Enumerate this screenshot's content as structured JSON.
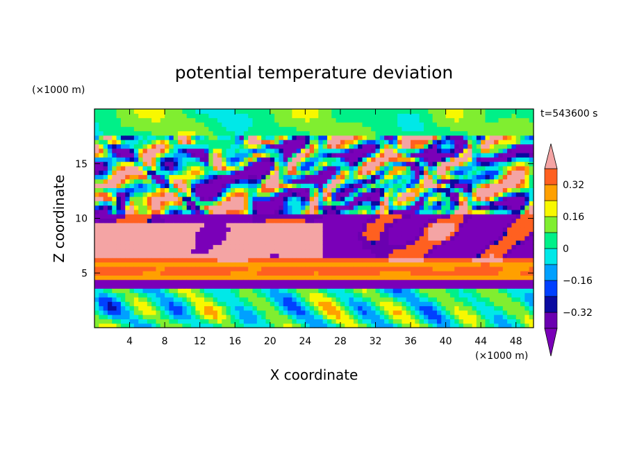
{
  "chart_data": {
    "type": "heatmap",
    "title": "potential temperature deviation",
    "xlabel": "X coordinate",
    "ylabel": "Z coordinate",
    "x_unit": "(×1000 m)",
    "y_unit": "(×1000 m)",
    "time_label": "t=543600 s",
    "xlim": [
      0,
      50
    ],
    "ylim": [
      0,
      20
    ],
    "x_ticks": [
      4,
      8,
      12,
      16,
      20,
      24,
      28,
      32,
      36,
      40,
      44,
      48
    ],
    "y_ticks": [
      5,
      10,
      15
    ],
    "colorbar": {
      "levels": [
        -0.4,
        -0.32,
        -0.24,
        -0.16,
        -0.08,
        0,
        0.08,
        0.16,
        0.24,
        0.32,
        0.4
      ],
      "labels": [
        {
          "value": 0.32,
          "text": "0.32"
        },
        {
          "value": 0.16,
          "text": "0.16"
        },
        {
          "value": 0,
          "text": "0"
        },
        {
          "value": -0.16,
          "text": "−0.16"
        },
        {
          "value": -0.32,
          "text": "−0.32"
        }
      ],
      "colors": [
        "#6a00b0",
        "#0a0aa0",
        "#0040ff",
        "#00a0ff",
        "#00e8e8",
        "#00f088",
        "#80ee30",
        "#f8f800",
        "#ffa000",
        "#ff6020",
        "#ff2020"
      ],
      "under_color": "#7a00b8",
      "over_color": "#f4a4a4"
    },
    "field_features": [
      {
        "z_range": [
          0,
          3.8
        ],
        "pattern": "convective swirls",
        "dominant": [
          "cyan",
          "green",
          "yellow",
          "orange"
        ]
      },
      {
        "z_range": [
          3.8,
          4.3
        ],
        "pattern": "layer",
        "value": -0.4
      },
      {
        "z_range": [
          4.3,
          6.3
        ],
        "pattern": "banded inversion layer",
        "dominant": [
          "pink",
          "red",
          "orange",
          "yellow"
        ]
      },
      {
        "z_range": [
          6.3,
          10.5
        ],
        "pattern": "large pink patch (x 1–26), purple cells (x 24–50)"
      },
      {
        "z_range": [
          10.5,
          17.5
        ],
        "pattern": "turbulent mixed",
        "dominant": [
          "purple",
          "pink",
          "cyan"
        ]
      },
      {
        "z_range": [
          17.5,
          20
        ],
        "pattern": "smooth",
        "dominant": [
          "green",
          "yellow",
          "cyan"
        ]
      }
    ]
  }
}
